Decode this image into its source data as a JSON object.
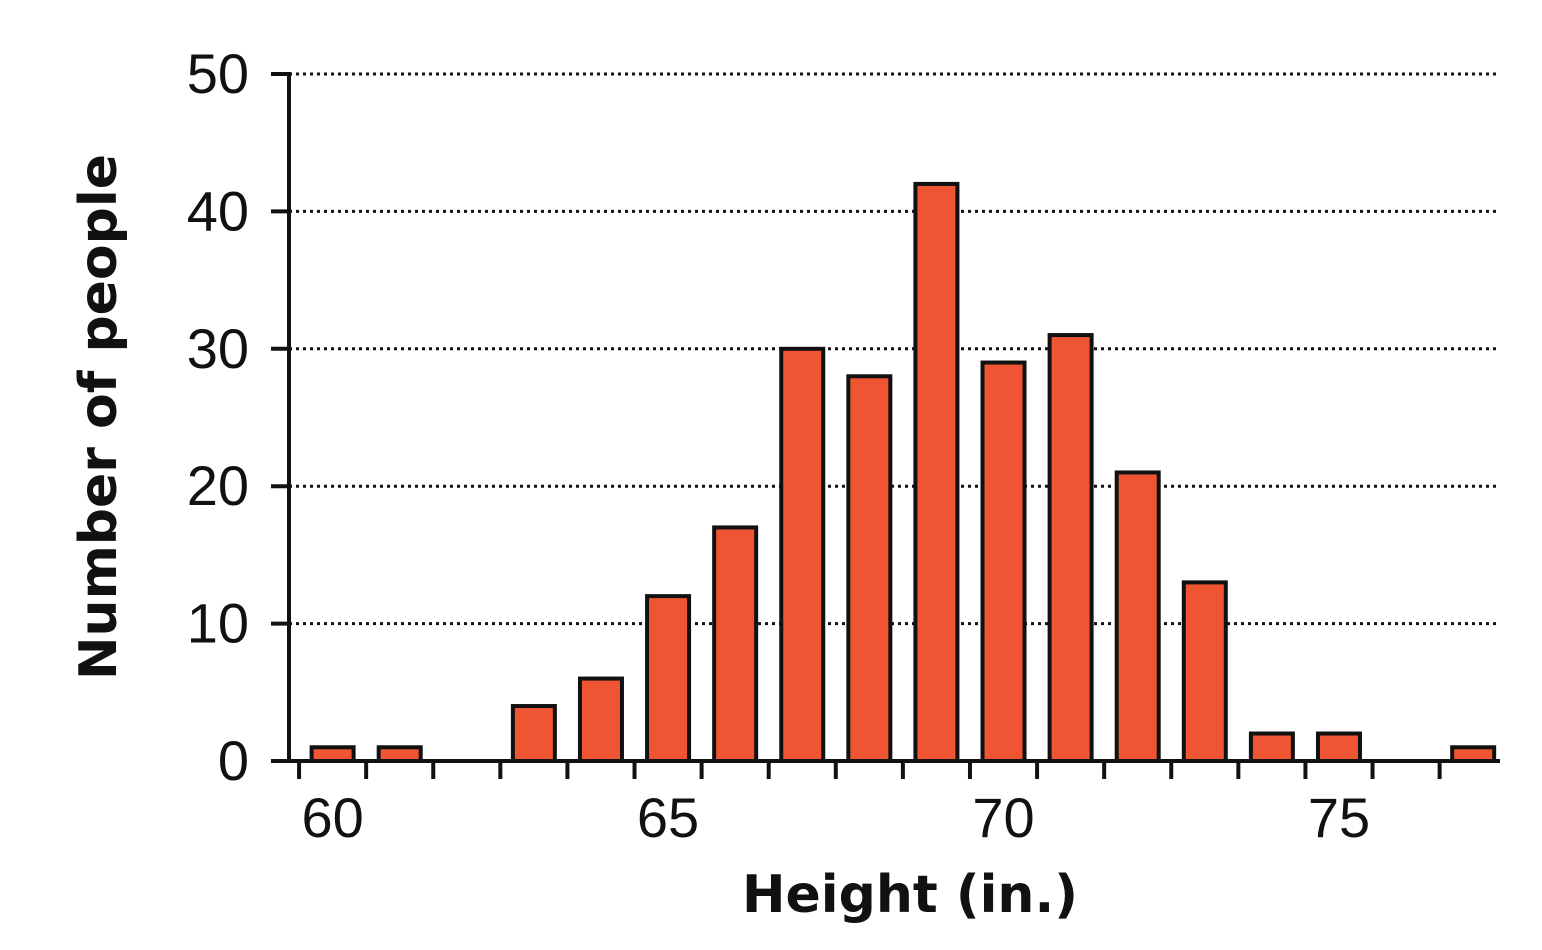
{
  "chart_data": {
    "type": "bar",
    "title": "",
    "xlabel": "Height (in.)",
    "ylabel": "Number of people",
    "x": [
      60,
      61,
      62,
      63,
      64,
      65,
      66,
      67,
      68,
      69,
      70,
      71,
      72,
      73,
      74,
      75,
      76,
      77
    ],
    "values": [
      1,
      1,
      0,
      4,
      6,
      12,
      17,
      30,
      28,
      42,
      29,
      31,
      21,
      13,
      2,
      2,
      0,
      1
    ],
    "ylim": [
      0,
      50
    ],
    "xlim": [
      59.35,
      77.4
    ],
    "yticks": [
      0,
      10,
      20,
      30,
      40,
      50
    ],
    "xtick_labels": [
      60,
      65,
      70,
      75
    ],
    "grid": "horizontal dotted",
    "bar_color": "#ef5533",
    "edge_color": "#111111"
  }
}
